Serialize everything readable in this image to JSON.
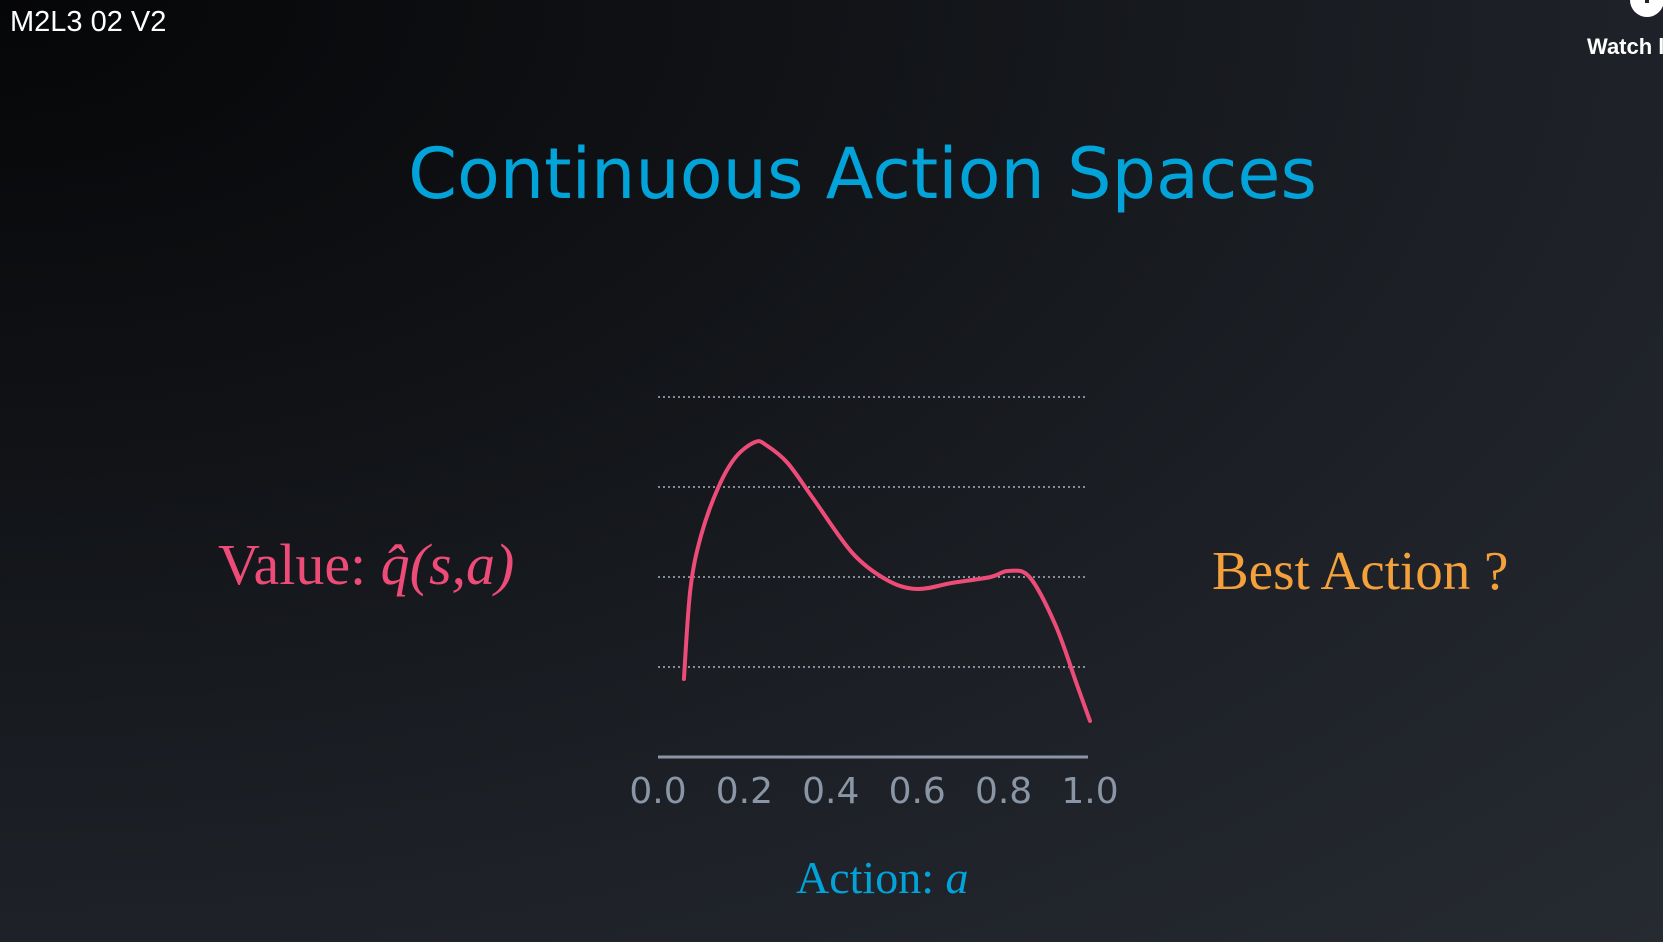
{
  "player": {
    "video_title": "M2L3 02 V2",
    "watch_later_label": "Watch l",
    "watch_later_icon": "clock-icon"
  },
  "slide": {
    "title": "Continuous Action Spaces",
    "value_label": {
      "prefix": "Value: ",
      "formula": "q̂(s,a)"
    },
    "best_action_label": "Best Action ?",
    "action_label": {
      "prefix": "Action: ",
      "variable": "a"
    }
  },
  "chart_data": {
    "type": "line",
    "xlabel": "Action: a",
    "ylabel": "Value: q̂(s,a)",
    "xlim": [
      0.0,
      1.0
    ],
    "x_ticks": [
      "0.0",
      "0.2",
      "0.4",
      "0.6",
      "0.8",
      "1.0"
    ],
    "grid": "horizontal dotted",
    "curve_color": "#ee4c78",
    "axis_color": "#8a96a5",
    "series": [
      {
        "x": [
          0.06,
          0.075,
          0.1,
          0.14,
          0.18,
          0.225,
          0.25,
          0.3,
          0.36,
          0.45,
          0.53,
          0.6,
          0.68,
          0.77,
          0.81,
          0.86,
          0.92,
          0.97,
          1.0
        ],
        "values": [
          0.26,
          0.56,
          0.74,
          0.9,
          1.0,
          1.05,
          1.04,
          0.98,
          0.86,
          0.68,
          0.59,
          0.56,
          0.58,
          0.6,
          0.62,
          0.6,
          0.44,
          0.24,
          0.12
        ]
      }
    ]
  }
}
